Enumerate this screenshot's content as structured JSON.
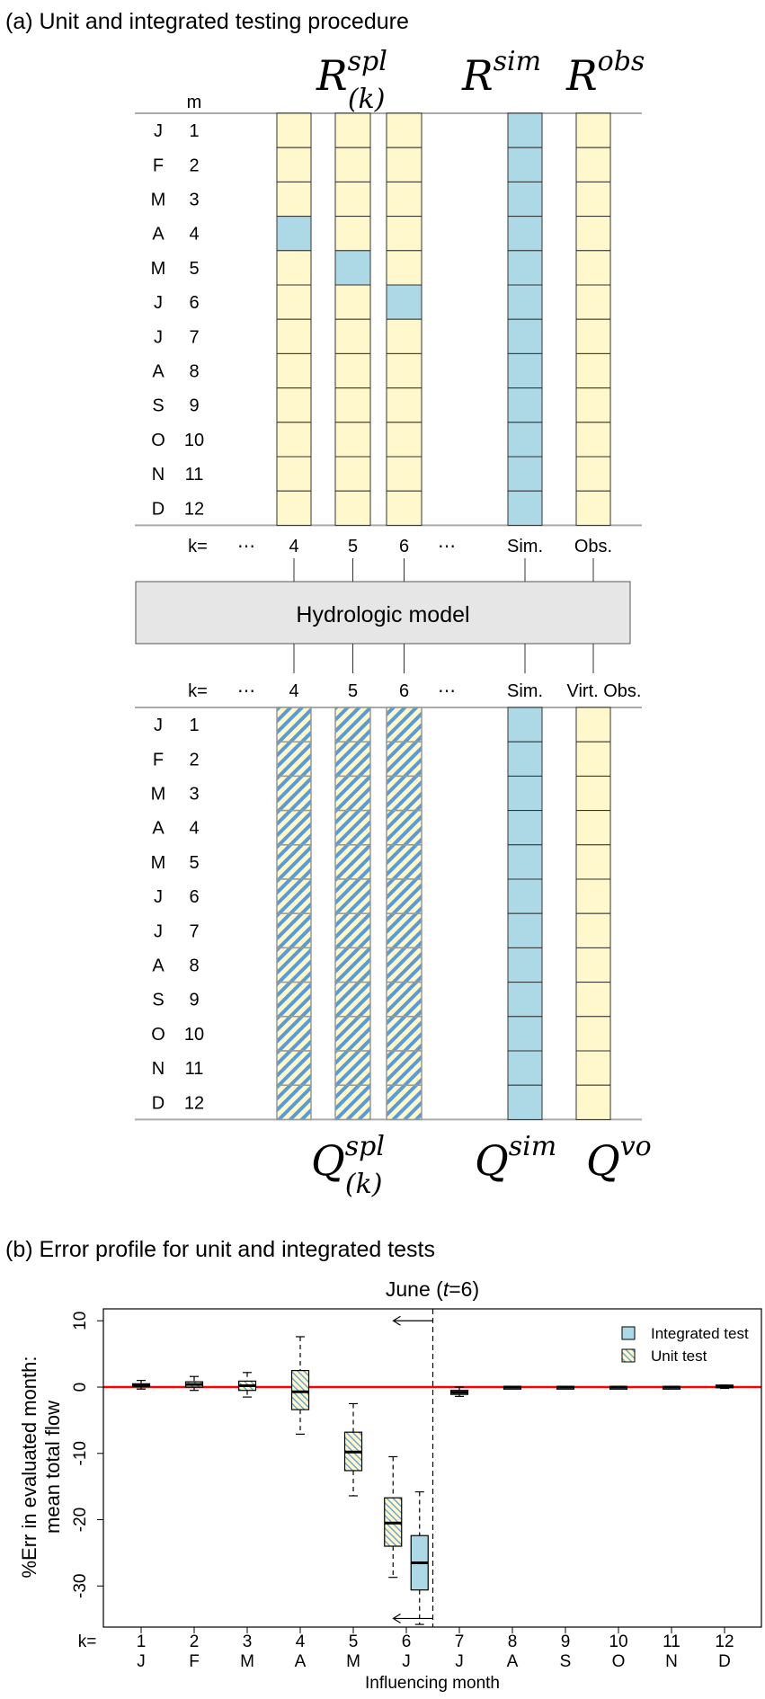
{
  "panel_a": {
    "title": "(a) Unit and integrated testing procedure",
    "m_header": "m",
    "months": [
      {
        "letter": "J",
        "num": "1"
      },
      {
        "letter": "F",
        "num": "2"
      },
      {
        "letter": "M",
        "num": "3"
      },
      {
        "letter": "A",
        "num": "4"
      },
      {
        "letter": "M",
        "num": "5"
      },
      {
        "letter": "J",
        "num": "6"
      },
      {
        "letter": "J",
        "num": "7"
      },
      {
        "letter": "A",
        "num": "8"
      },
      {
        "letter": "S",
        "num": "9"
      },
      {
        "letter": "O",
        "num": "10"
      },
      {
        "letter": "N",
        "num": "11"
      },
      {
        "letter": "D",
        "num": "12"
      }
    ],
    "top_headers": {
      "spl_base": "R",
      "spl_sup": "spl",
      "spl_sub": "(k)",
      "sim_base": "R",
      "sim_sup": "sim",
      "obs_base": "R",
      "obs_sup": "obs"
    },
    "top_columns": [
      {
        "label": "4",
        "fill": "yellow",
        "blue_month": 4
      },
      {
        "label": "5",
        "fill": "yellow",
        "blue_month": 5
      },
      {
        "label": "6",
        "fill": "yellow",
        "blue_month": 6
      },
      {
        "label": "Sim.",
        "fill": "blue"
      },
      {
        "label": "Obs.",
        "fill": "yellow"
      }
    ],
    "k_label": "k=",
    "ellipsis": "⋯",
    "model_label": "Hydrologic model",
    "bottom_columns": [
      {
        "label": "4",
        "fill": "hatch"
      },
      {
        "label": "5",
        "fill": "hatch"
      },
      {
        "label": "6",
        "fill": "hatch"
      },
      {
        "label": "Sim.",
        "fill": "blue"
      },
      {
        "label": "Virt. Obs.",
        "fill": "yellow"
      }
    ],
    "bottom_headers": {
      "spl_base": "Q",
      "spl_sup": "spl",
      "spl_sub": "(k)",
      "sim_base": "Q",
      "sim_sup": "sim",
      "vo_base": "Q",
      "vo_sup": "vo"
    },
    "colors": {
      "yellow": "#fff8cc",
      "blue": "#add8e6",
      "hatch_line": "#5b9bd5"
    }
  },
  "panel_b": {
    "title": "(b) Error profile for unit and integrated tests",
    "chart_data": {
      "type": "box",
      "title_pre": "June (",
      "title_var": "t",
      "title_post": "=6)",
      "ylabel_line1": "%Err in evaluated month:",
      "ylabel_line2": "mean total flow",
      "xlabel": "Influencing month",
      "k_label": "k=",
      "ylim": [
        -36.2,
        11.8
      ],
      "yticks": [
        10,
        0,
        -10,
        -20,
        -30
      ],
      "categories": [
        "1",
        "2",
        "3",
        "4",
        "5",
        "6",
        "7",
        "8",
        "9",
        "10",
        "11",
        "12"
      ],
      "month_letters": [
        "J",
        "F",
        "M",
        "A",
        "M",
        "J",
        "J",
        "A",
        "S",
        "O",
        "N",
        "D"
      ],
      "reference_line": 0,
      "split_at": 6.5,
      "legend": [
        {
          "name": "Integrated test",
          "style": "solid"
        },
        {
          "name": "Unit test",
          "style": "hatch"
        }
      ],
      "legend_position": "top-right",
      "series": [
        {
          "name": "Unit test",
          "style": "hatch",
          "boxes": [
            {
              "k": 1,
              "offset": 0,
              "min": -0.3,
              "q1": 0.1,
              "median": 0.3,
              "q3": 0.5,
              "max": 1.0
            },
            {
              "k": 2,
              "offset": 0,
              "min": -0.5,
              "q1": 0.0,
              "median": 0.4,
              "q3": 0.8,
              "max": 1.6
            },
            {
              "k": 3,
              "offset": 0,
              "min": -1.5,
              "q1": -0.5,
              "median": 0.2,
              "q3": 0.9,
              "max": 2.2
            },
            {
              "k": 4,
              "offset": 0,
              "min": -7.1,
              "q1": -3.4,
              "median": -0.7,
              "q3": 2.5,
              "max": 7.6
            },
            {
              "k": 5,
              "offset": 0,
              "min": -16.4,
              "q1": -12.6,
              "median": -9.8,
              "q3": -6.8,
              "max": -2.5
            },
            {
              "k": 6,
              "offset": -0.25,
              "min": -28.7,
              "q1": -24.0,
              "median": -20.5,
              "q3": -16.7,
              "max": -10.5
            },
            {
              "k": 7,
              "offset": 0,
              "min": -1.4,
              "q1": -1.1,
              "median": -0.8,
              "q3": -0.5,
              "max": 0.0
            }
          ]
        },
        {
          "name": "Integrated test",
          "style": "solid",
          "boxes": [
            {
              "k": 6,
              "offset": 0.25,
              "min": -35.8,
              "q1": -30.6,
              "median": -26.5,
              "q3": -22.4,
              "max": -15.8
            },
            {
              "k": 8,
              "offset": 0,
              "min": -0.2,
              "q1": -0.15,
              "median": 0.0,
              "q3": 0.1,
              "max": 0.1
            },
            {
              "k": 9,
              "offset": 0,
              "min": -0.2,
              "q1": -0.15,
              "median": 0.0,
              "q3": 0.1,
              "max": 0.1
            },
            {
              "k": 10,
              "offset": 0,
              "min": -0.2,
              "q1": -0.15,
              "median": 0.0,
              "q3": 0.1,
              "max": 0.1
            },
            {
              "k": 11,
              "offset": 0,
              "min": -0.2,
              "q1": -0.15,
              "median": 0.0,
              "q3": 0.1,
              "max": 0.1
            },
            {
              "k": 12,
              "offset": 0,
              "min": -0.2,
              "q1": -0.1,
              "median": 0.1,
              "q3": 0.3,
              "max": 0.3
            }
          ]
        }
      ],
      "colors": {
        "box_fill": "#add8e6",
        "hatch_bg": "#fff8cc",
        "hatch_line": "#5b9bd5",
        "reference": "#ff0000"
      }
    }
  }
}
